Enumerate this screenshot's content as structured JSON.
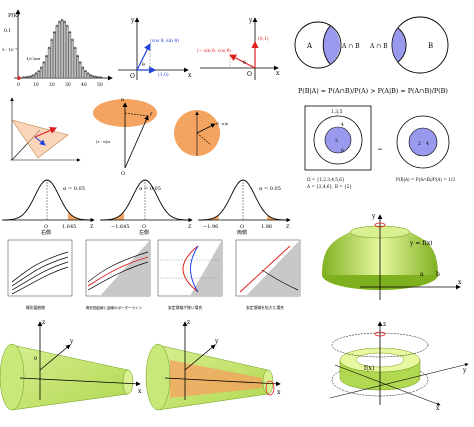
{
  "panels": {
    "histogram": {
      "ylabel": "P(k)",
      "ytick_a": "0.1",
      "ytick_b": "5 · 10⁻²",
      "frac": "1/√2πσ",
      "xticks": [
        "0",
        "10",
        "20",
        "30",
        "40",
        "50"
      ],
      "bars": [
        0.01,
        0.015,
        0.02,
        0.03,
        0.05,
        0.08,
        0.12,
        0.18,
        0.27,
        0.38,
        0.52,
        0.66,
        0.79,
        0.9,
        0.97,
        1.0,
        0.97,
        0.9,
        0.79,
        0.66,
        0.52,
        0.38,
        0.27,
        0.18,
        0.12,
        0.08,
        0.05,
        0.03,
        0.02,
        0.015,
        0.01
      ]
    },
    "unit_vec_1": {
      "label_y": "y",
      "label_x": "x",
      "label_o": "O",
      "label_vec": "(cos θ, sin θ)",
      "label_10": "(1,0)",
      "label_theta": "θ"
    },
    "unit_vec_2": {
      "label_y": "y",
      "label_x": "x",
      "label_o": "O",
      "label_vec": "(− sin θ, cos θ)",
      "label_01": "(0,1)",
      "label_theta": "θ"
    },
    "venn_1": {
      "label_a": "A",
      "label_cap": "A ∩ B"
    },
    "venn_2": {
      "label_cap": "A ∩ B",
      "label_b": "B"
    },
    "cond_formula": {
      "text": "P(B|A) = P(A∩B)/P(A) > P(A|B) = P(A∩B)/P(B)"
    },
    "dice_box": {
      "top": "1,3,5",
      "c2": "2",
      "c4": "4",
      "c6": "6",
      "cap1": "Ω = {1,2,3,4,5,6}",
      "cap2": "A = {2,4,6}, B = {2}"
    },
    "dice_circle": {
      "c2": "2",
      "c4": "4",
      "caption": "P(B|A) = P(A∩B)/P(A) = 1/3"
    },
    "normal_1": {
      "alpha": "α = 0.05",
      "x0": "O",
      "x1": "1.645",
      "xz": "Z",
      "caption": "右側"
    },
    "normal_2": {
      "alpha": "α = 0.05",
      "x0": "O",
      "x1": "−1.645",
      "xz": "Z",
      "caption": "左側"
    },
    "normal_3": {
      "alpha": "α = 0.05",
      "x0": "O",
      "x1": "−1.96",
      "x2": "1.96",
      "xz": "Z",
      "caption": "両側"
    },
    "curves": {
      "cap1": "概形図曲線",
      "cap2": "概形図曲線と曲線のボーダーライン",
      "cap3": "安定領域が狭い場合",
      "cap4": "安定領域を拡大た場合"
    },
    "solid": {
      "label_y": "y",
      "label_x": "x",
      "label_f": "y = f(x)",
      "label_a": "a",
      "label_b": "b"
    },
    "cones": {
      "label_z": "z",
      "label_y": "y",
      "label_x": "x",
      "label_theta": "θ",
      "label_z2": "z",
      "label_y2": "y",
      "label_x2": "x"
    },
    "ring": {
      "label_z": "z",
      "label_f": "f(x)",
      "label_x": "x",
      "label_y": "y"
    }
  },
  "colors": {
    "orange": "#f4a460",
    "lightorange": "#f8b98a",
    "purple": "#9999ee",
    "green": "#a8d84c",
    "darkgreen": "#6b9c1a",
    "red": "#e02020",
    "blue": "#2040e0"
  }
}
